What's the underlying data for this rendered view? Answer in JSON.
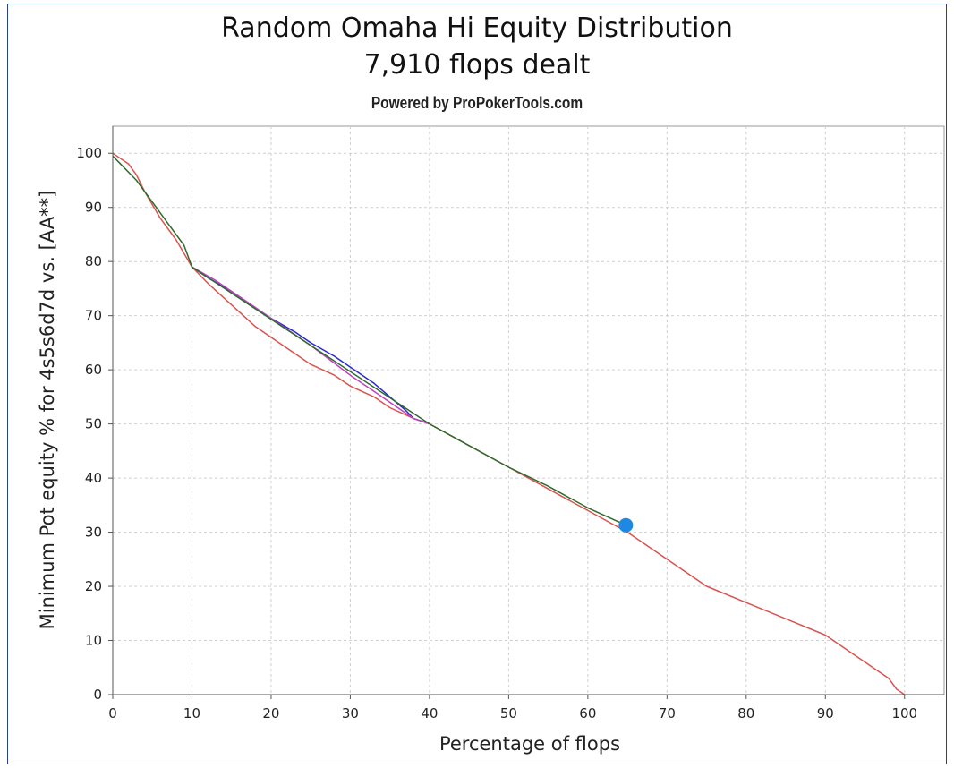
{
  "chart_data": {
    "type": "line",
    "title": "Random Omaha Hi Equity Distribution",
    "subtitle": "7,910 flops dealt",
    "credit": "Powered by ProPokerTools.com",
    "xlabel": "Percentage of flops",
    "ylabel": "Minimum Pot equity % for 4s5s6d7d vs. [AA**]",
    "xlim": [
      0,
      105
    ],
    "ylim": [
      0,
      105
    ],
    "xticks": [
      0,
      10,
      20,
      30,
      40,
      50,
      60,
      70,
      80,
      90,
      100
    ],
    "yticks": [
      0,
      10,
      20,
      30,
      40,
      50,
      60,
      70,
      80,
      90,
      100
    ],
    "grid": true,
    "series": [
      {
        "color": "#d9534f",
        "x": [
          0,
          2,
          3,
          4,
          6,
          8,
          10,
          12,
          15,
          18,
          20,
          23,
          25,
          28,
          30,
          33,
          35,
          38,
          40,
          45,
          50,
          55,
          60,
          65,
          70,
          75,
          80,
          85,
          90,
          93,
          96,
          98,
          99,
          100
        ],
        "y": [
          100,
          98,
          96,
          93,
          88,
          84,
          79,
          76,
          72,
          68,
          66,
          63,
          61,
          59,
          57,
          55,
          53,
          51,
          50,
          46,
          42,
          38,
          34,
          30,
          25,
          20,
          17,
          14,
          11,
          8,
          5,
          3,
          1,
          0
        ]
      },
      {
        "color": "#2a2ad0",
        "x": [
          10,
          12,
          15,
          18,
          20,
          23,
          25,
          28,
          30,
          33,
          35,
          37,
          38,
          40
        ],
        "y": [
          79,
          77,
          74.5,
          71.5,
          69.5,
          67,
          65,
          62.5,
          60.5,
          57.5,
          55,
          52.5,
          51,
          50
        ]
      },
      {
        "color": "#c040c0",
        "x": [
          10,
          13,
          16,
          20,
          25,
          30,
          33,
          36,
          38,
          40
        ],
        "y": [
          79,
          76.5,
          73.5,
          69.5,
          64.5,
          59,
          56,
          53,
          51,
          50
        ]
      },
      {
        "color": "#2e6b2e",
        "x": [
          0,
          1,
          3,
          5,
          7,
          9,
          10,
          40,
          45,
          50,
          55,
          60,
          64.8
        ],
        "y": [
          99.5,
          98,
          95,
          91,
          87,
          83,
          79,
          50,
          46,
          42,
          38.5,
          34.5,
          31.3
        ]
      }
    ],
    "marker": {
      "x": 64.8,
      "y": 31.3,
      "color": "#1e88e5"
    }
  }
}
